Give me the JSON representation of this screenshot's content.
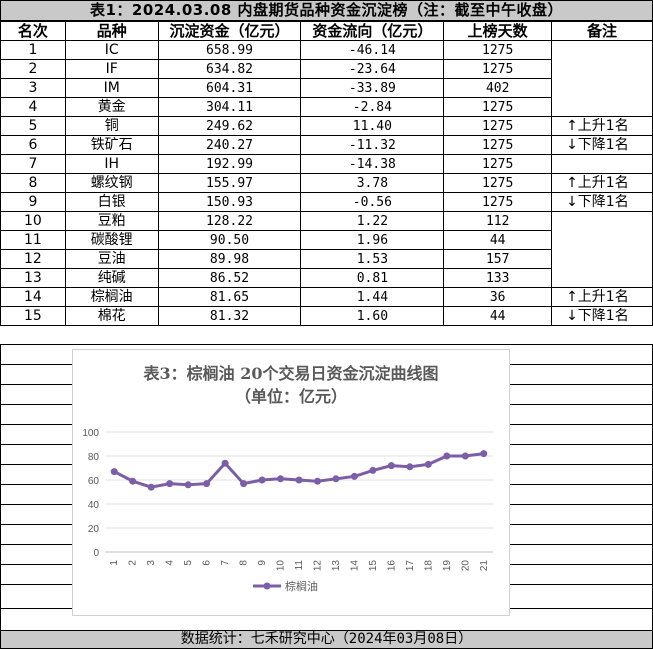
{
  "title": "表1：2024.03.08 内盘期货品种资金沉淀榜（注：截至中午收盘）",
  "headers": {
    "rank": "名次",
    "variety": "品种",
    "amount": "沉淀资金（亿元）",
    "flow": "资金流向（亿元）",
    "days": "上榜天数",
    "note": "备注"
  },
  "rows": [
    {
      "rank": "1",
      "variety": "IC",
      "amount": "658.99",
      "flow": "-46.14",
      "days": "1275",
      "note": ""
    },
    {
      "rank": "2",
      "variety": "IF",
      "amount": "634.82",
      "flow": "-23.64",
      "days": "1275",
      "note": ""
    },
    {
      "rank": "3",
      "variety": "IM",
      "amount": "604.31",
      "flow": "-33.89",
      "days": "402",
      "note": ""
    },
    {
      "rank": "4",
      "variety": "黄金",
      "amount": "304.11",
      "flow": "-2.84",
      "days": "1275",
      "note": ""
    },
    {
      "rank": "5",
      "variety": "铜",
      "amount": "249.62",
      "flow": "11.40",
      "days": "1275",
      "note": "↑上升1名"
    },
    {
      "rank": "6",
      "variety": "铁矿石",
      "amount": "240.27",
      "flow": "-11.32",
      "days": "1275",
      "note": "↓下降1名"
    },
    {
      "rank": "7",
      "variety": "IH",
      "amount": "192.99",
      "flow": "-14.38",
      "days": "1275",
      "note": ""
    },
    {
      "rank": "8",
      "variety": "螺纹钢",
      "amount": "155.97",
      "flow": "3.78",
      "days": "1275",
      "note": "↑上升1名"
    },
    {
      "rank": "9",
      "variety": "白银",
      "amount": "150.93",
      "flow": "-0.56",
      "days": "1275",
      "note": "↓下降1名"
    },
    {
      "rank": "10",
      "variety": "豆粕",
      "amount": "128.22",
      "flow": "1.22",
      "days": "112",
      "note": ""
    },
    {
      "rank": "11",
      "variety": "碳酸锂",
      "amount": "90.50",
      "flow": "1.96",
      "days": "44",
      "note": ""
    },
    {
      "rank": "12",
      "variety": "豆油",
      "amount": "89.98",
      "flow": "1.53",
      "days": "157",
      "note": ""
    },
    {
      "rank": "13",
      "variety": "纯碱",
      "amount": "86.52",
      "flow": "0.81",
      "days": "133",
      "note": ""
    },
    {
      "rank": "14",
      "variety": "棕榈油",
      "amount": "81.65",
      "flow": "1.44",
      "days": "36",
      "note": "↑上升1名"
    },
    {
      "rank": "15",
      "variety": "棉花",
      "amount": "81.32",
      "flow": "1.60",
      "days": "44",
      "note": "↓下降1名"
    }
  ],
  "chart_data": {
    "type": "line",
    "title": "表3：棕榈油 20个交易日资金沉淀曲线图",
    "subtitle": "（单位：亿元）",
    "x": [
      1,
      2,
      3,
      4,
      5,
      6,
      7,
      8,
      9,
      10,
      11,
      12,
      13,
      14,
      15,
      16,
      17,
      18,
      19,
      20,
      21
    ],
    "series": [
      {
        "name": "棕榈油",
        "color": "#7b5ea7",
        "values": [
          67,
          59,
          54,
          57,
          56,
          57,
          74,
          57,
          60,
          61,
          60,
          59,
          61,
          63,
          68,
          72,
          71,
          73,
          80,
          80,
          82
        ]
      }
    ],
    "ylim": [
      0,
      100
    ],
    "yticks": [
      0,
      20,
      40,
      60,
      80,
      100
    ],
    "legend": "bottom"
  },
  "footer": "数据统计：七禾研究中心（2024年03月08日）"
}
